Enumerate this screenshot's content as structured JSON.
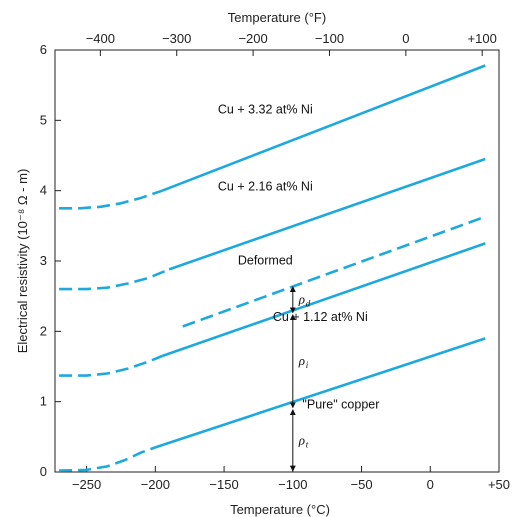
{
  "chart_data": {
    "type": "line",
    "title": "",
    "xlabel_bottom": "Temperature (°C)",
    "xlabel_top": "Temperature (°F)",
    "ylabel": "Electrical resistivity (10⁻⁸ Ω - m)",
    "xlim": [
      -273,
      50
    ],
    "ylim": [
      0,
      6
    ],
    "x_ticks": [
      -250,
      -200,
      -150,
      -100,
      -50,
      0,
      50
    ],
    "x_tick_labels": [
      "−250",
      "−200",
      "−150",
      "−100",
      "−50",
      "0",
      "+50"
    ],
    "top_ticks_F": [
      -400,
      -300,
      -200,
      -100,
      0,
      100
    ],
    "top_tick_labels": [
      "−400",
      "−300",
      "−200",
      "−100",
      "0",
      "+100"
    ],
    "y_ticks": [
      0,
      1,
      2,
      3,
      4,
      5,
      6
    ],
    "y_tick_labels": [
      "0",
      "1",
      "2",
      "3",
      "4",
      "5",
      "6"
    ],
    "color": "#1ea9dd",
    "series": [
      {
        "name": "Cu + 3.32 at% Ni",
        "dashed": [
          [
            -270,
            3.75
          ],
          [
            -255,
            3.75
          ],
          [
            -240,
            3.77
          ],
          [
            -225,
            3.82
          ],
          [
            -210,
            3.9
          ],
          [
            -195,
            4.0
          ]
        ],
        "solid": [
          [
            -195,
            4.0
          ],
          [
            40,
            5.78
          ]
        ]
      },
      {
        "name": "Cu + 2.16 at% Ni",
        "dashed": [
          [
            -270,
            2.6
          ],
          [
            -250,
            2.6
          ],
          [
            -235,
            2.62
          ],
          [
            -220,
            2.68
          ],
          [
            -205,
            2.76
          ],
          [
            -190,
            2.88
          ]
        ],
        "solid": [
          [
            -190,
            2.88
          ],
          [
            40,
            4.45
          ]
        ]
      },
      {
        "name": "Deformed",
        "dashed": [
          [
            -180,
            2.07
          ],
          [
            40,
            3.63
          ]
        ],
        "solid": []
      },
      {
        "name": "Cu + 1.12 at% Ni",
        "dashed": [
          [
            -270,
            1.37
          ],
          [
            -250,
            1.37
          ],
          [
            -235,
            1.4
          ],
          [
            -220,
            1.47
          ],
          [
            -205,
            1.57
          ],
          [
            -195,
            1.65
          ]
        ],
        "solid": [
          [
            -195,
            1.65
          ],
          [
            40,
            3.25
          ]
        ]
      },
      {
        "name": "\"Pure\" copper",
        "dashed": [
          [
            -270,
            0.02
          ],
          [
            -250,
            0.03
          ],
          [
            -235,
            0.08
          ],
          [
            -222,
            0.17
          ],
          [
            -210,
            0.28
          ],
          [
            -200,
            0.35
          ]
        ],
        "solid": [
          [
            -200,
            0.35
          ],
          [
            40,
            1.9
          ]
        ]
      }
    ],
    "series_label_positions": [
      [
        -120,
        5.1
      ],
      [
        -120,
        4.0
      ],
      [
        -120,
        2.95
      ],
      [
        -80,
        2.15
      ],
      [
        -65,
        0.9
      ]
    ],
    "annotations": {
      "x": -100,
      "rho_d": {
        "label": "ρ",
        "sub": "d",
        "from": 2.25,
        "to": 2.65
      },
      "rho_i": {
        "label": "ρ",
        "sub": "i",
        "from": 0.9,
        "to": 2.25
      },
      "rho_t": {
        "label": "ρ",
        "sub": "t",
        "from": 0,
        "to": 0.9
      }
    }
  }
}
